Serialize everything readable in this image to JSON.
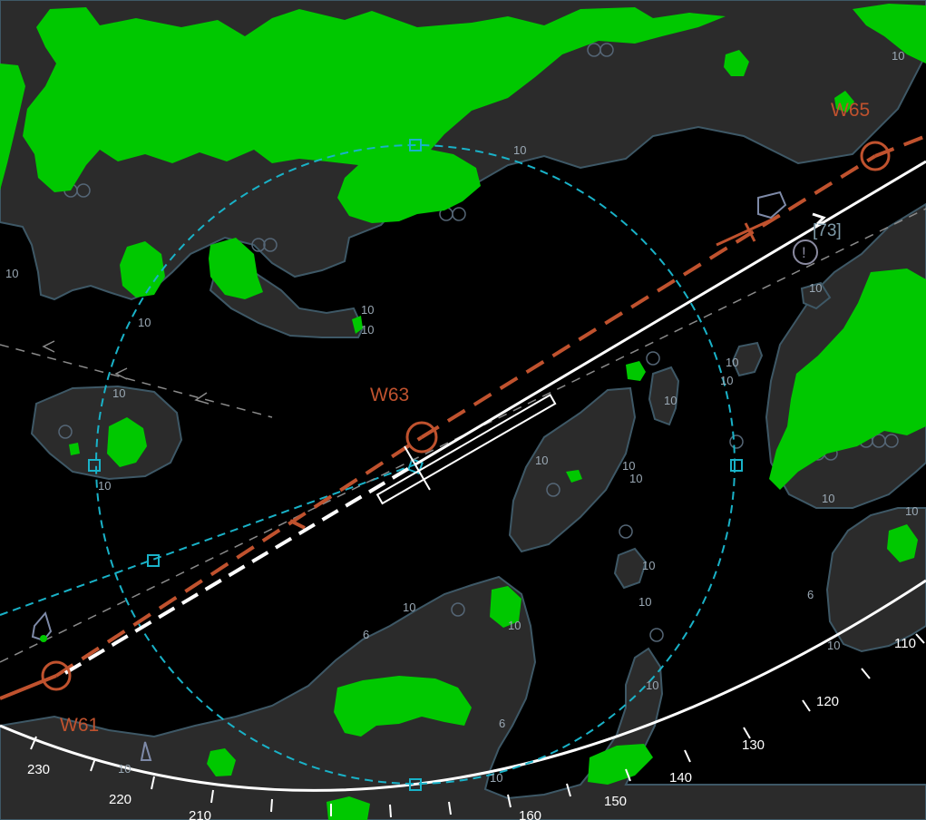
{
  "display": {
    "background": "#000000",
    "land_fill": "#2b2b2b",
    "land_outline": "#3e5866",
    "weather_color": "#00c800",
    "range_ring_color": "#19b2c8",
    "route_color": "#c0522e",
    "ownship_track_color": "#ffffff",
    "traffic_track_color": "#8a8a8a"
  },
  "waypoints": [
    {
      "id": "W61",
      "label": "W61",
      "icon": "circle-waypoint"
    },
    {
      "id": "W63",
      "label": "W63",
      "icon": "circle-waypoint"
    },
    {
      "id": "W65",
      "label": "W65",
      "icon": "circle-waypoint"
    }
  ],
  "compass": {
    "heading_labels": [
      "230",
      "220",
      "210",
      "160",
      "150",
      "140",
      "130",
      "120",
      "110"
    ]
  },
  "depth_labels": {
    "ten": "10",
    "six": "6"
  },
  "target": {
    "tag": "[73]",
    "warning_glyph": "!"
  }
}
